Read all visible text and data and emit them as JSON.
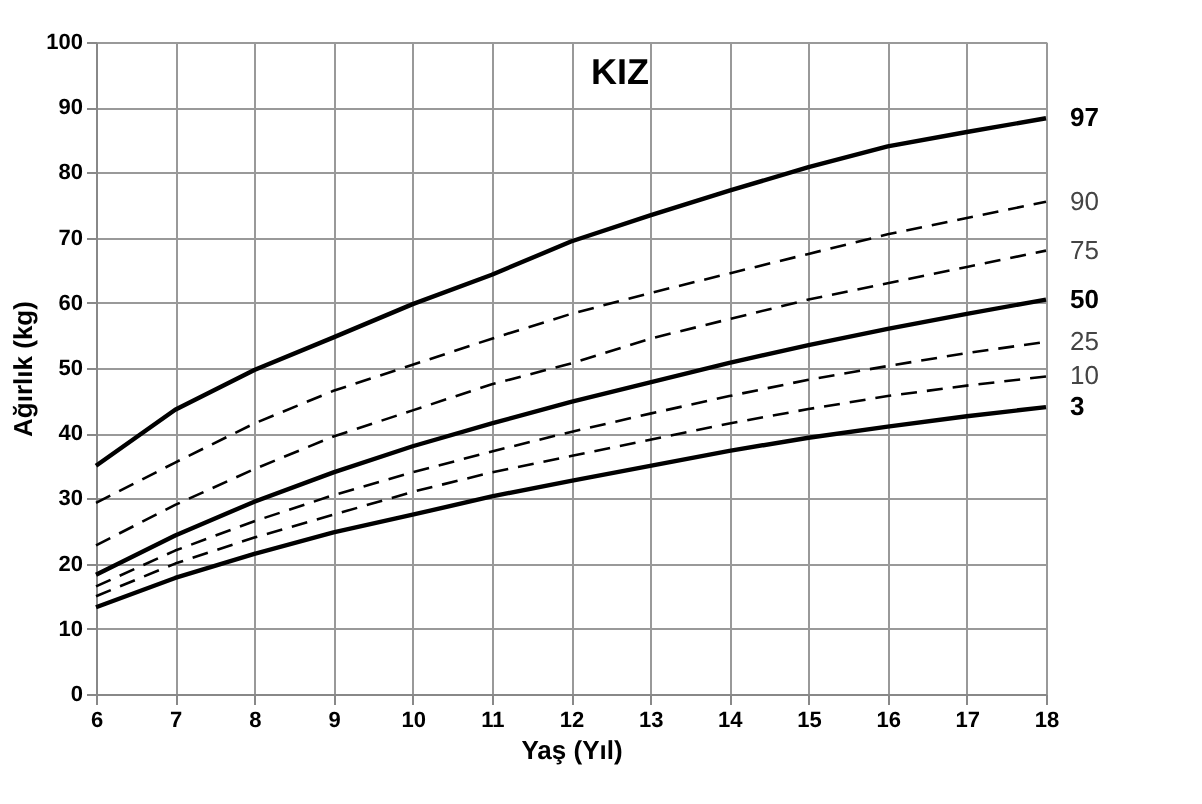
{
  "chart_data": {
    "type": "line",
    "title": "KIZ",
    "xlabel": "Yaş (Yıl)",
    "ylabel": "Ağırlık (kg)",
    "x": [
      6,
      7,
      8,
      9,
      10,
      11,
      12,
      13,
      14,
      15,
      16,
      17,
      18
    ],
    "series": [
      {
        "name": "97",
        "color": "#000000",
        "line_style": "solid",
        "values": [
          35,
          43.6,
          49.7,
          54.7,
          59.8,
          64.3,
          69.4,
          73.4,
          77.2,
          80.8,
          84,
          86.2,
          88.3
        ]
      },
      {
        "name": "90",
        "color": "#000000",
        "line_style": "dashed",
        "values": [
          29.3,
          35.5,
          41.5,
          46.5,
          50.5,
          54.5,
          58.3,
          61.5,
          64.5,
          67.5,
          70.5,
          73,
          75.5
        ]
      },
      {
        "name": "75",
        "color": "#000000",
        "line_style": "dashed",
        "values": [
          22.8,
          29,
          34.5,
          39.5,
          43.5,
          47.5,
          50.7,
          54.5,
          57.5,
          60.5,
          63,
          65.5,
          68
        ]
      },
      {
        "name": "50",
        "color": "#000000",
        "line_style": "solid",
        "values": [
          18.3,
          24.3,
          29.5,
          34,
          38,
          41.5,
          44.8,
          47.8,
          50.8,
          53.5,
          56,
          58.3,
          60.5
        ]
      },
      {
        "name": "25",
        "color": "#000000",
        "line_style": "dashed",
        "values": [
          16.5,
          22,
          26.5,
          30.5,
          34,
          37.2,
          40.2,
          43,
          45.7,
          48.2,
          50.3,
          52.3,
          54
        ]
      },
      {
        "name": "10",
        "color": "#000000",
        "line_style": "dashed",
        "values": [
          15,
          20,
          24,
          27.5,
          31,
          34,
          36.5,
          39,
          41.5,
          43.7,
          45.7,
          47.3,
          48.7
        ]
      },
      {
        "name": "3",
        "color": "#000000",
        "line_style": "solid",
        "values": [
          13.3,
          17.8,
          21.5,
          24.8,
          27.5,
          30.3,
          32.7,
          35,
          37.3,
          39.3,
          41,
          42.6,
          44
        ]
      }
    ],
    "xlim": [
      6,
      18
    ],
    "xticks": [
      6,
      7,
      8,
      9,
      10,
      11,
      12,
      13,
      14,
      15,
      16,
      17,
      18
    ],
    "ylim": [
      0,
      100
    ],
    "yticks": [
      0,
      10,
      20,
      30,
      40,
      50,
      60,
      70,
      80,
      90,
      100
    ],
    "grid": true,
    "marker": "none",
    "legend": "right"
  }
}
